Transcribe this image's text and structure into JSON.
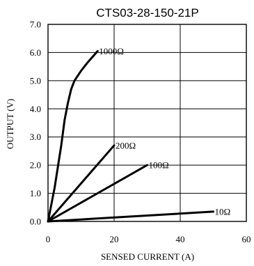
{
  "chart_data": {
    "type": "line",
    "title": "CTS03-28-150-21P",
    "xlabel": "SENSED CURRENT (A)",
    "ylabel": "OUTPUT (V)",
    "xlim": [
      0,
      60
    ],
    "ylim": [
      0,
      7
    ],
    "x_ticks": [
      "0",
      "20",
      "40",
      "60"
    ],
    "y_ticks": [
      "0.0",
      "1.0",
      "2.0",
      "3.0",
      "4.0",
      "5.0",
      "6.0",
      "7.0"
    ],
    "grid": true,
    "line_color": "#000000",
    "series": [
      {
        "name": "1000Ω",
        "x": [
          0,
          2,
          4,
          5,
          6,
          7,
          8,
          10,
          12,
          15
        ],
        "y": [
          0,
          1.2,
          2.7,
          3.6,
          4.2,
          4.7,
          5.0,
          5.35,
          5.65,
          6.05
        ]
      },
      {
        "name": "200Ω",
        "x": [
          0,
          20
        ],
        "y": [
          0,
          2.7
        ]
      },
      {
        "name": "100Ω",
        "x": [
          0,
          30
        ],
        "y": [
          0,
          2.0
        ]
      },
      {
        "name": "10Ω",
        "x": [
          0,
          50
        ],
        "y": [
          0,
          0.35
        ]
      }
    ]
  }
}
